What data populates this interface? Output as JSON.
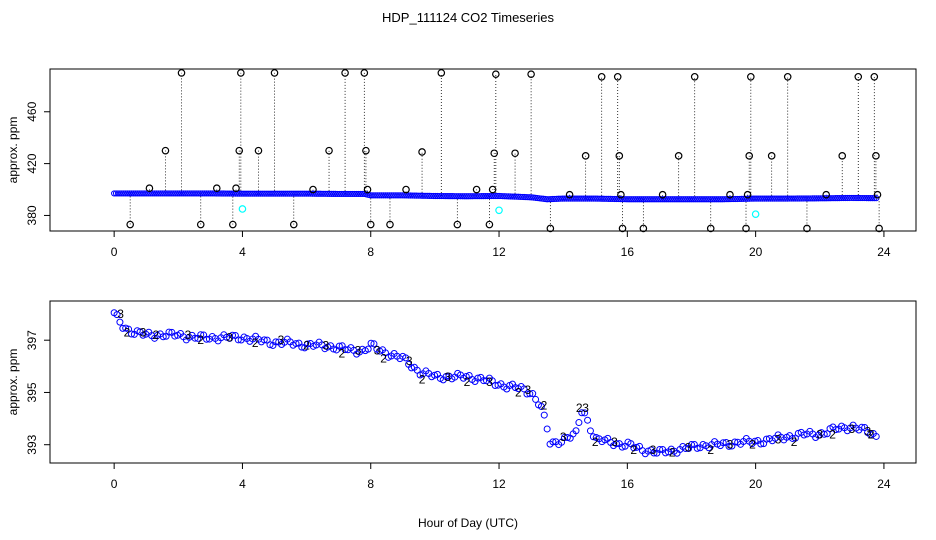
{
  "title": "HDP_111124  CO2 Timeseries",
  "xlabel": "Hour of Day (UTC)",
  "colors": {
    "axis": "#000000",
    "series_main": "#0000ff",
    "series_flag": "#00ffff",
    "series_alt": "#00cc00",
    "spike_line": "#000000"
  },
  "chart_data": [
    {
      "type": "scatter",
      "name": "top-panel",
      "ylabel": "approx. ppm",
      "xlim": [
        -2,
        25
      ],
      "ylim": [
        368,
        493
      ],
      "x_ticks": [
        0,
        4,
        8,
        12,
        16,
        20,
        24
      ],
      "x_tick_labels": [
        "0",
        "4",
        "8",
        "12",
        "16",
        "20",
        "24"
      ],
      "y_ticks": [
        380,
        420,
        460
      ],
      "y_tick_labels": [
        "380",
        "420",
        "460"
      ],
      "baseline": {
        "marker": "o",
        "color": "#0000ff",
        "x": [
          0,
          1,
          2,
          3,
          4,
          5,
          6,
          7,
          7.8,
          8,
          9,
          10,
          11,
          12,
          13,
          13.5,
          14,
          15,
          16,
          17,
          18,
          19,
          20,
          21,
          22,
          23,
          23.8
        ],
        "y": [
          397,
          397,
          397,
          397,
          396.8,
          396.8,
          396.8,
          396.6,
          396.6,
          395.5,
          395.5,
          395,
          394.8,
          395,
          394,
          392.5,
          393,
          393,
          392.5,
          392.5,
          392.5,
          392.5,
          393,
          393,
          393.2,
          393.5,
          393.3
        ]
      },
      "spikes": {
        "marker": "o",
        "color": "#000000",
        "style": "dotted-drop-line",
        "points": [
          [
            0.5,
            373
          ],
          [
            1.1,
            401
          ],
          [
            1.6,
            430
          ],
          [
            2.1,
            490
          ],
          [
            2.7,
            373
          ],
          [
            3.2,
            401
          ],
          [
            3.7,
            373
          ],
          [
            3.8,
            401
          ],
          [
            3.9,
            430
          ],
          [
            3.95,
            490
          ],
          [
            4.5,
            430
          ],
          [
            5.0,
            490
          ],
          [
            5.6,
            373
          ],
          [
            6.2,
            400
          ],
          [
            6.7,
            430
          ],
          [
            7.2,
            490
          ],
          [
            7.8,
            490
          ],
          [
            7.85,
            430
          ],
          [
            7.9,
            400
          ],
          [
            8.0,
            373
          ],
          [
            8.6,
            373
          ],
          [
            9.1,
            400
          ],
          [
            9.6,
            429
          ],
          [
            10.2,
            490
          ],
          [
            10.7,
            373
          ],
          [
            11.3,
            400
          ],
          [
            11.7,
            373
          ],
          [
            11.8,
            400
          ],
          [
            11.85,
            428
          ],
          [
            11.9,
            489
          ],
          [
            12.5,
            428
          ],
          [
            13.0,
            489
          ],
          [
            13.6,
            370
          ],
          [
            14.2,
            396
          ],
          [
            14.7,
            426
          ],
          [
            15.2,
            487
          ],
          [
            15.7,
            487
          ],
          [
            15.75,
            426
          ],
          [
            15.8,
            396
          ],
          [
            15.85,
            370
          ],
          [
            16.5,
            370
          ],
          [
            17.1,
            396
          ],
          [
            17.6,
            426
          ],
          [
            18.1,
            487
          ],
          [
            18.6,
            370
          ],
          [
            19.2,
            396
          ],
          [
            19.7,
            370
          ],
          [
            19.75,
            396
          ],
          [
            19.8,
            426
          ],
          [
            19.85,
            487
          ],
          [
            20.5,
            426
          ],
          [
            21.0,
            487
          ],
          [
            21.6,
            370
          ],
          [
            22.2,
            396
          ],
          [
            22.7,
            426
          ],
          [
            23.2,
            487
          ],
          [
            23.7,
            487
          ],
          [
            23.75,
            426
          ],
          [
            23.8,
            396
          ],
          [
            23.85,
            370
          ]
        ]
      },
      "flagged": {
        "marker": "o",
        "color": "#00ffff",
        "points": [
          [
            4.0,
            385
          ],
          [
            12.0,
            384
          ],
          [
            20.0,
            381
          ]
        ]
      }
    },
    {
      "type": "scatter",
      "name": "bottom-panel",
      "ylabel": "approx. ppm",
      "xlim": [
        -2,
        25
      ],
      "ylim": [
        392.3,
        398.5
      ],
      "x_ticks": [
        0,
        4,
        8,
        12,
        16,
        20,
        24
      ],
      "x_tick_labels": [
        "0",
        "4",
        "8",
        "12",
        "16",
        "20",
        "24"
      ],
      "y_ticks": [
        393,
        395,
        397
      ],
      "y_tick_labels": [
        "393",
        "395",
        "397"
      ],
      "series": [
        {
          "name": "circles",
          "marker": "o",
          "color": "#0000ff",
          "x": [
            0,
            0.3,
            0.6,
            1,
            1.5,
            2,
            2.5,
            3,
            3.5,
            4,
            4.5,
            5,
            5.5,
            6,
            6.5,
            7,
            7.5,
            7.8,
            8,
            8.5,
            9,
            9.5,
            10,
            10.5,
            11,
            11.5,
            12,
            12.5,
            13,
            13.3,
            13.5,
            13.6,
            14,
            14.4,
            14.6,
            15,
            15.5,
            15.8,
            16,
            16.5,
            17,
            17.5,
            18,
            18.5,
            19,
            19.5,
            20,
            20.5,
            21,
            21.5,
            22,
            22.5,
            23,
            23.5,
            23.8
          ],
          "y": [
            398,
            397.5,
            397.3,
            397.2,
            397.2,
            397.2,
            397.1,
            397.1,
            397.1,
            397.1,
            397.0,
            396.9,
            396.9,
            396.8,
            396.8,
            396.7,
            396.6,
            396.6,
            396.8,
            396.5,
            396.3,
            395.8,
            395.6,
            395.6,
            395.6,
            395.5,
            395.3,
            395.2,
            395.0,
            394.5,
            393.6,
            393.0,
            393.2,
            393.4,
            394.4,
            393.2,
            393.1,
            393.0,
            393.0,
            392.8,
            392.7,
            392.8,
            392.9,
            393.0,
            393.0,
            393.1,
            393.1,
            393.2,
            393.3,
            393.4,
            393.4,
            393.6,
            393.7,
            393.5,
            393.3
          ]
        },
        {
          "name": "digit-2",
          "marker": "2",
          "color": "#00cc00",
          "x": [
            0.4,
            1.3,
            2.7,
            4.4,
            6.0,
            7.1,
            8.4,
            9.6,
            11.0,
            12.6,
            13.4,
            14.5,
            15.0,
            16.2,
            17.4,
            18.6,
            19.9,
            21.2,
            22.4,
            23.6
          ],
          "y": [
            397.3,
            397.2,
            397.0,
            396.9,
            396.8,
            396.5,
            396.3,
            395.5,
            395.4,
            395.0,
            394.5,
            394.4,
            393.1,
            392.8,
            392.7,
            392.8,
            393.0,
            393.1,
            393.4,
            393.4
          ]
        },
        {
          "name": "digit-3",
          "marker": "3",
          "color": "#0000ff",
          "x": [
            0.2,
            0.9,
            2.3,
            3.6,
            5.2,
            6.6,
            7.6,
            8.2,
            9.2,
            10.4,
            11.7,
            12.9,
            14.0,
            14.7,
            15.6,
            16.8,
            17.9,
            19.2,
            20.7,
            22.0,
            23.0,
            23.5
          ],
          "y": [
            398.0,
            397.3,
            397.2,
            397.1,
            397.0,
            396.8,
            396.6,
            396.6,
            396.2,
            395.6,
            395.4,
            395.1,
            393.3,
            394.4,
            393.1,
            392.8,
            392.9,
            393.0,
            393.2,
            393.4,
            393.6,
            393.5
          ]
        }
      ]
    }
  ]
}
